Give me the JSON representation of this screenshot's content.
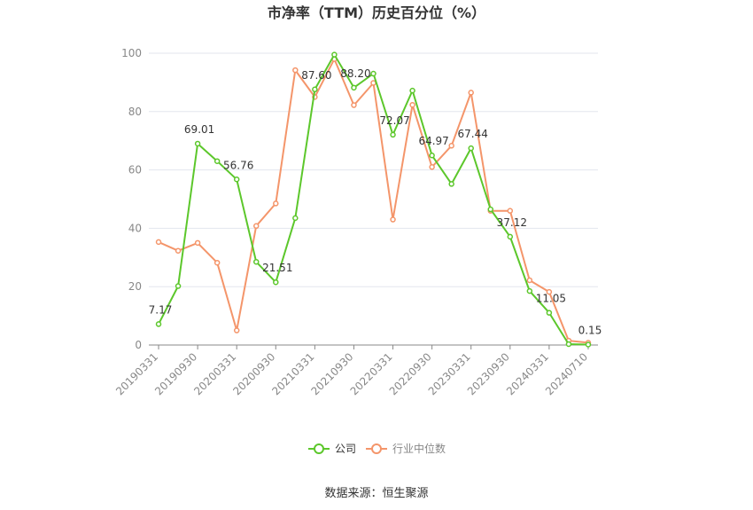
{
  "chart_data": {
    "type": "line",
    "title": "市净率（TTM）历史百分位（%）",
    "source": "数据来源：恒生聚源",
    "ylim": [
      0,
      100
    ],
    "yticks": [
      0,
      20,
      40,
      60,
      80,
      100
    ],
    "grid": true,
    "legend_position": "bottom",
    "x_tick_labels": [
      "20190331",
      "20190930",
      "20200331",
      "20200930",
      "20210331",
      "20210930",
      "20220331",
      "20220930",
      "20230331",
      "20230930",
      "20240331",
      "20240710"
    ],
    "x": [
      "20190331",
      "20190630",
      "20190930",
      "20191231",
      "20200331",
      "20200630",
      "20200930",
      "20201231",
      "20210331",
      "20210630",
      "20210930",
      "20211231",
      "20220331",
      "20220630",
      "20220930",
      "20221231",
      "20230331",
      "20230630",
      "20230930",
      "20231231",
      "20240331",
      "20240630",
      "20240710"
    ],
    "series": [
      {
        "name": "公司",
        "color": "#5cc72b",
        "values": [
          7.17,
          20.2,
          69.01,
          63.0,
          56.76,
          28.5,
          21.51,
          43.5,
          87.6,
          99.5,
          88.2,
          93.0,
          72.07,
          87.2,
          64.97,
          55.2,
          67.44,
          46.5,
          37.12,
          18.5,
          11.05,
          0.3,
          0.15
        ],
        "labels": {
          "0": "7.17",
          "2": "69.01",
          "4": "56.76",
          "6": "21.51",
          "8": "87.60",
          "10": "88.20",
          "12": "72.07",
          "14": "64.97",
          "16": "67.44",
          "18": "37.12",
          "20": "11.05",
          "22": "0.15"
        }
      },
      {
        "name": "行业中位数",
        "color": "#f4956a",
        "values": [
          35.3,
          32.3,
          35.0,
          28.2,
          5.0,
          40.8,
          48.5,
          94.2,
          85.0,
          98.0,
          82.2,
          89.8,
          43.0,
          82.3,
          61.0,
          68.3,
          86.5,
          46.0,
          46.0,
          22.2,
          18.2,
          1.5,
          0.8
        ]
      }
    ]
  }
}
